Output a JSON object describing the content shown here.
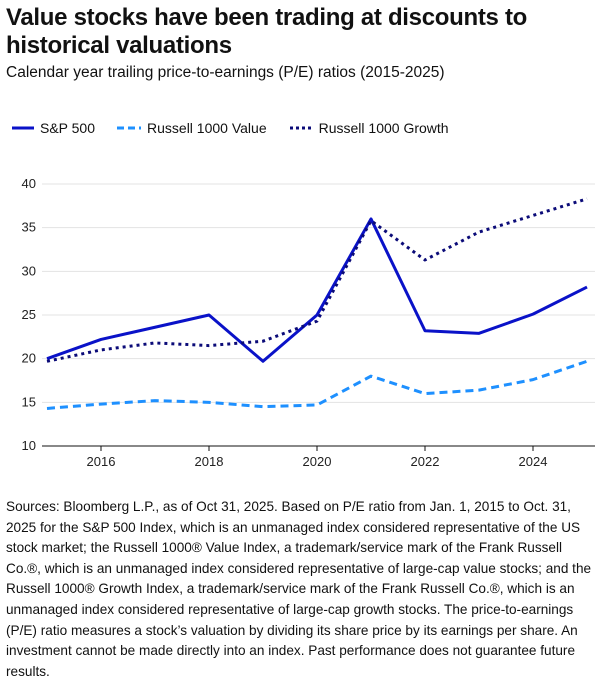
{
  "title": "Value stocks have been trading at discounts to historical valuations",
  "subtitle": "Calendar year trailing price-to-earnings (P/E) ratios (2015-2025)",
  "notes": "Sources: Bloomberg L.P., as of Oct 31, 2025. Based on P/E ratio from Jan. 1, 2015 to Oct. 31, 2025 for the S&P 500 Index, which is an unmanaged index considered representative of the US stock market; the Russell 1000® Value Index, a trademark/service mark of the Frank Russell Co.®, which is an unmanaged index considered representative of large-cap value stocks; and the Russell 1000® Growth Index, a trademark/service mark of the Frank Russell Co.®, which is an unmanaged index considered representative of large-cap growth stocks. The price-to-earnings (P/E) ratio measures a stock’s valuation by dividing its share price by its earnings per share. An investment cannot be made directly into an index. Past performance does not guarantee future results.",
  "chart_data": {
    "type": "line",
    "x": [
      2015,
      2016,
      2017,
      2018,
      2019,
      2020,
      2021,
      2022,
      2023,
      2024,
      2025
    ],
    "xticks": [
      "2016",
      "2018",
      "2020",
      "2022",
      "2024"
    ],
    "yticks": [
      "10",
      "15",
      "20",
      "25",
      "30",
      "35",
      "40"
    ],
    "ylim": [
      10,
      40
    ],
    "xlim": [
      2015,
      2025
    ],
    "grid": true,
    "legend_position": "top",
    "series": [
      {
        "name": "S&P 500",
        "color": "#0a12c8",
        "style": "solid",
        "values": [
          20.0,
          22.2,
          23.6,
          25.0,
          19.7,
          25.0,
          36.0,
          23.2,
          22.9,
          25.1,
          28.2
        ]
      },
      {
        "name": "Russell 1000 Value",
        "color": "#1e90ff",
        "style": "dashed",
        "values": [
          14.3,
          14.8,
          15.2,
          15.0,
          14.5,
          14.7,
          18.0,
          16.0,
          16.4,
          17.6,
          19.7
        ]
      },
      {
        "name": "Russell 1000 Growth",
        "color": "#0b0b78",
        "style": "dotted",
        "values": [
          19.7,
          21.0,
          21.8,
          21.5,
          22.0,
          24.3,
          35.8,
          31.3,
          34.5,
          36.4,
          38.3
        ]
      }
    ]
  }
}
